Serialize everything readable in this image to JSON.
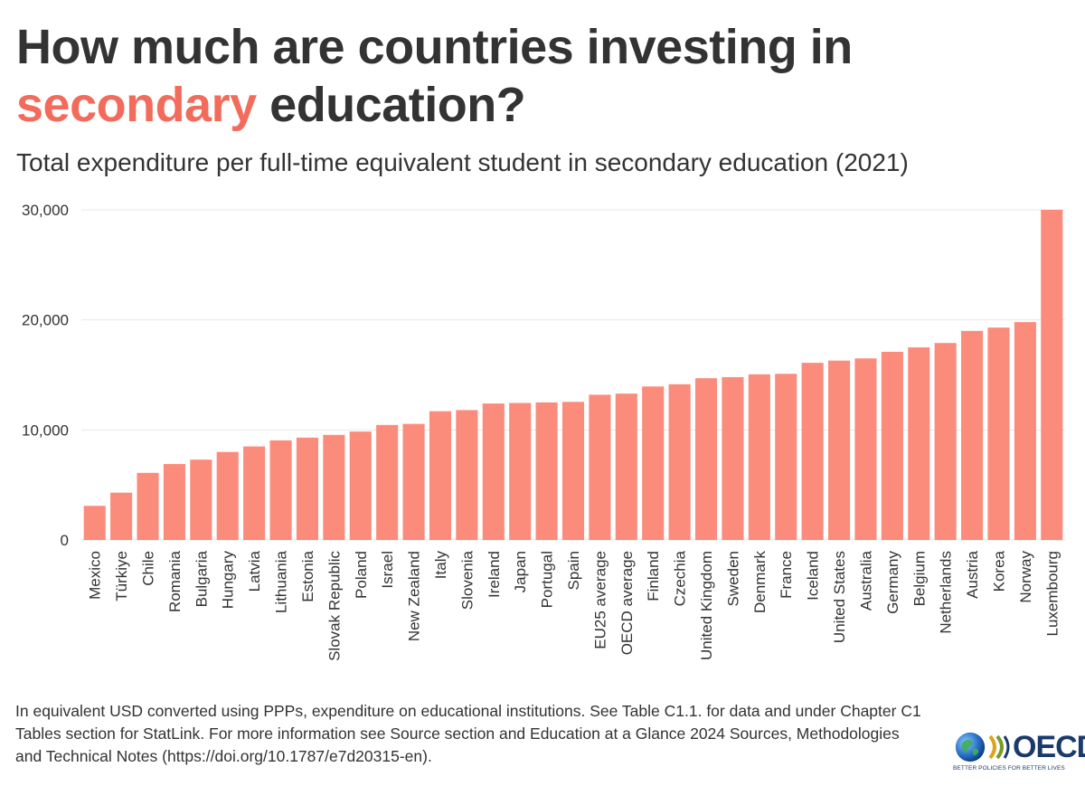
{
  "header": {
    "title_part1": "How much are countries investing in",
    "title_highlight": "secondary",
    "title_part2": "education?",
    "subtitle": "Total expenditure per full-time equivalent student in secondary education (2021)"
  },
  "colors": {
    "bar": "#fb8c7c",
    "highlight": "#f26b5b",
    "text": "#333333",
    "grid": "#e6e6e6"
  },
  "chart_data": {
    "type": "bar",
    "title": "Total expenditure per full-time equivalent student in secondary education (2021)",
    "xlabel": "",
    "ylabel": "",
    "ylim": [
      0,
      30000
    ],
    "yticks": [
      0,
      10000,
      20000,
      30000
    ],
    "ytick_labels": [
      "0",
      "10,000",
      "20,000",
      "30,000"
    ],
    "grid": true,
    "categories": [
      "Mexico",
      "Türkiye",
      "Chile",
      "Romania",
      "Bulgaria",
      "Hungary",
      "Latvia",
      "Lithuania",
      "Estonia",
      "Slovak Republic",
      "Poland",
      "Israel",
      "New Zealand",
      "Italy",
      "Slovenia",
      "Ireland",
      "Japan",
      "Portugal",
      "Spain",
      "EU25 average",
      "OECD average",
      "Finland",
      "Czechia",
      "United Kingdom",
      "Sweden",
      "Denmark",
      "France",
      "Iceland",
      "United States",
      "Australia",
      "Germany",
      "Belgium",
      "Netherlands",
      "Austria",
      "Korea",
      "Norway",
      "Luxembourg"
    ],
    "values": [
      3100,
      4300,
      6100,
      6900,
      7300,
      8000,
      8500,
      9050,
      9300,
      9550,
      9850,
      10450,
      10550,
      11700,
      11800,
      12400,
      12450,
      12500,
      12550,
      13200,
      13300,
      13950,
      14150,
      14700,
      14800,
      15050,
      15100,
      16100,
      16300,
      16500,
      17100,
      17500,
      17900,
      19000,
      19300,
      19800,
      30000
    ]
  },
  "footnote": "In equivalent USD converted using PPPs, expenditure on educational institutions. See Table C1.1. for data and under Chapter C1 Tables section for StatLink. For more information see Source section and Education at a Glance 2024 Sources, Methodologies and Technical Notes (https://doi.org/10.1787/e7d20315-en).",
  "logo": {
    "name": "OECD",
    "tagline": "BETTER POLICIES FOR BETTER LIVES"
  }
}
